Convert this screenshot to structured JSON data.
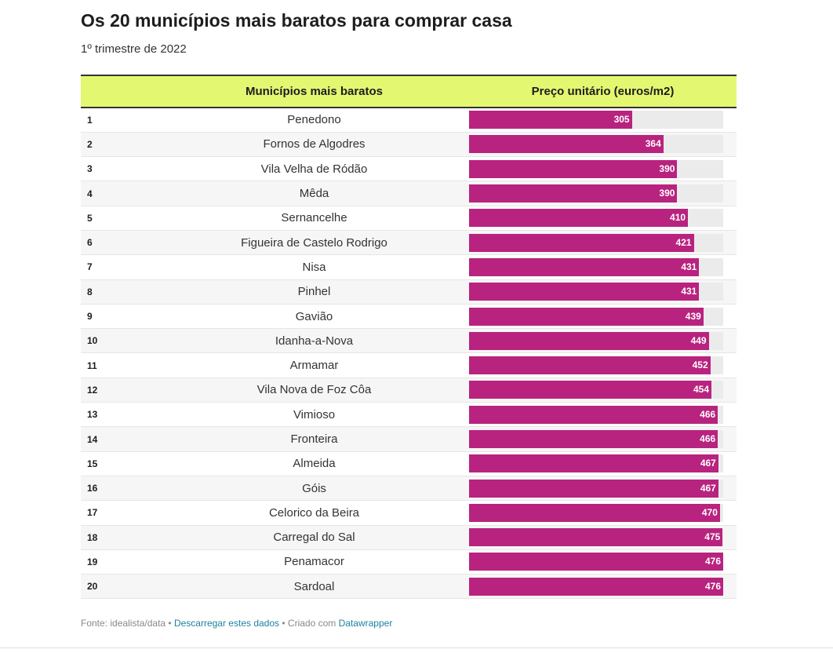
{
  "header": {
    "title": "Os 20 municípios mais baratos para comprar casa",
    "subtitle": "1º trimestre de 2022"
  },
  "table": {
    "col_name": "Municípios mais baratos",
    "col_price": "Preço unitário (euros/m2)"
  },
  "footer": {
    "source": "Fonte: idealista/data",
    "sep": " • ",
    "download_link": "Descarregar estes dados",
    "created_with": "Criado com",
    "dw_link": "Datawrapper"
  },
  "colors": {
    "bar": "#b8237f",
    "header_bg": "#e4f771",
    "track": "#ebebeb"
  },
  "chart_data": {
    "type": "table",
    "title": "Os 20 municípios mais baratos para comprar casa",
    "subtitle": "1º trimestre de 2022",
    "columns": [
      "",
      "Municípios mais baratos",
      "Preço unitário (euros/m2)"
    ],
    "bar_max": 476,
    "rows": [
      {
        "rank": "1",
        "name": "Penedono",
        "value": 305
      },
      {
        "rank": "2",
        "name": "Fornos de Algodres",
        "value": 364
      },
      {
        "rank": "3",
        "name": "Vila Velha de Ródão",
        "value": 390
      },
      {
        "rank": "4",
        "name": "Mêda",
        "value": 390
      },
      {
        "rank": "5",
        "name": "Sernancelhe",
        "value": 410
      },
      {
        "rank": "6",
        "name": "Figueira de Castelo Rodrigo",
        "value": 421
      },
      {
        "rank": "7",
        "name": "Nisa",
        "value": 431
      },
      {
        "rank": "8",
        "name": "Pinhel",
        "value": 431
      },
      {
        "rank": "9",
        "name": "Gavião",
        "value": 439
      },
      {
        "rank": "10",
        "name": "Idanha-a-Nova",
        "value": 449
      },
      {
        "rank": "11",
        "name": "Armamar",
        "value": 452
      },
      {
        "rank": "12",
        "name": "Vila Nova de Foz Côa",
        "value": 454
      },
      {
        "rank": "13",
        "name": "Vimioso",
        "value": 466
      },
      {
        "rank": "14",
        "name": "Fronteira",
        "value": 466
      },
      {
        "rank": "15",
        "name": "Almeida",
        "value": 467
      },
      {
        "rank": "16",
        "name": "Góis",
        "value": 467
      },
      {
        "rank": "17",
        "name": "Celorico da Beira",
        "value": 470
      },
      {
        "rank": "18",
        "name": "Carregal do Sal",
        "value": 475
      },
      {
        "rank": "19",
        "name": "Penamacor",
        "value": 476
      },
      {
        "rank": "20",
        "name": "Sardoal",
        "value": 476
      }
    ]
  }
}
